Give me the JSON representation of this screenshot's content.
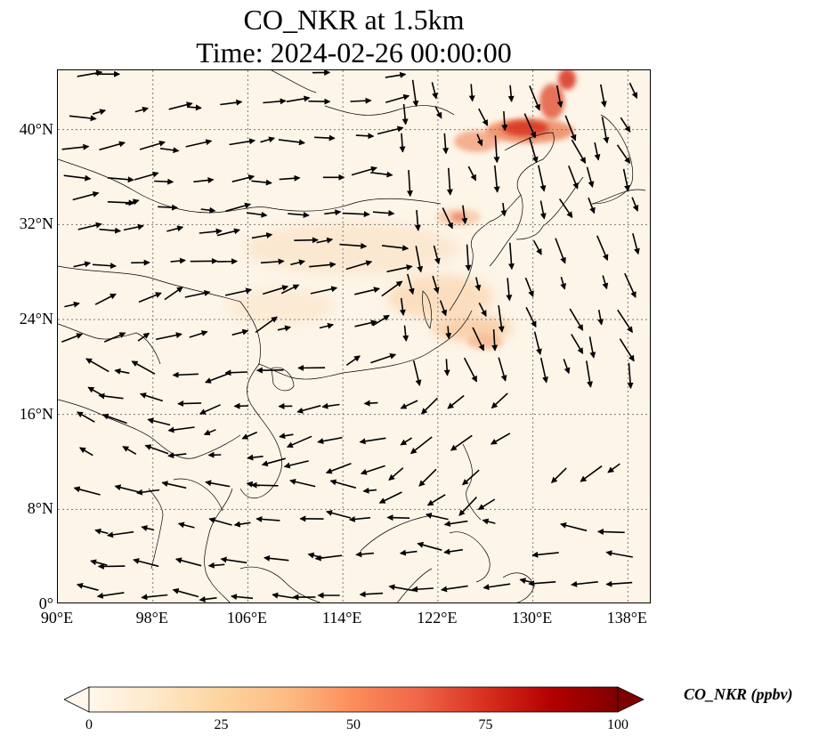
{
  "title": {
    "line1": "CO_NKR at 1.5km",
    "line2": "Time: 2024-02-26 00:00:00"
  },
  "map": {
    "lon_range": [
      90,
      140
    ],
    "lat_range": [
      0,
      45
    ],
    "lat_ticks": [
      {
        "value": 0,
        "label": "0°"
      },
      {
        "value": 8,
        "label": "8°N"
      },
      {
        "value": 16,
        "label": "16°N"
      },
      {
        "value": 24,
        "label": "24°N"
      },
      {
        "value": 32,
        "label": "32°N"
      },
      {
        "value": 40,
        "label": "40°N"
      }
    ],
    "lon_ticks": [
      {
        "value": 90,
        "label": "90°E"
      },
      {
        "value": 98,
        "label": "98°E"
      },
      {
        "value": 106,
        "label": "106°E"
      },
      {
        "value": 114,
        "label": "114°E"
      },
      {
        "value": 122,
        "label": "122°E"
      },
      {
        "value": 130,
        "label": "130°E"
      },
      {
        "value": 138,
        "label": "138°E"
      }
    ],
    "gridlines": "dotted",
    "background_color": "#fdf5e8",
    "coastline_color": "#000000",
    "vector_color": "#000000"
  },
  "colorbar": {
    "label": "CO_NKR (ppbv)",
    "ticks": [
      "0",
      "25",
      "50",
      "75",
      "100"
    ],
    "range": [
      0,
      100
    ],
    "colormap": "OrRd",
    "extend": "both",
    "colors": [
      "#fff7ec",
      "#fee8c8",
      "#fdd49e",
      "#fdbb84",
      "#fc8d59",
      "#ef6548",
      "#d7301f",
      "#b30000",
      "#7f0000"
    ]
  }
}
